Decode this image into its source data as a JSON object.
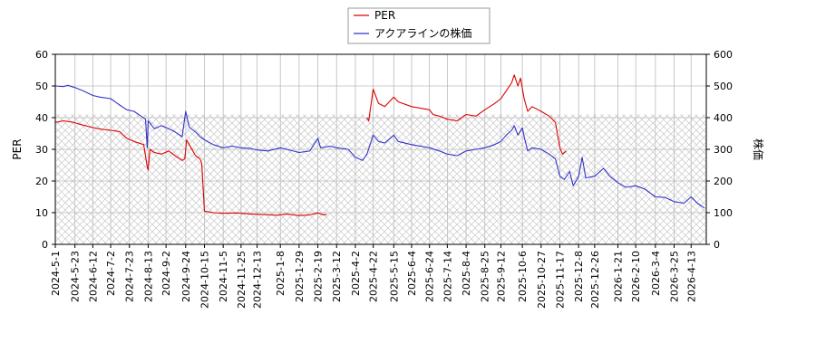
{
  "chart_data": {
    "type": "line",
    "title": "",
    "ylabel_left": "PER",
    "ylabel_right": "株価",
    "ylim_left": [
      0,
      60
    ],
    "ylim_right": [
      0,
      600
    ],
    "yticks_left": [
      "0",
      "10",
      "20",
      "30",
      "40",
      "50",
      "60"
    ],
    "yticks_right": [
      "0",
      "100",
      "200",
      "300",
      "400",
      "500",
      "600"
    ],
    "x_range": [
      "2024-05-01",
      "2026-04-30"
    ],
    "xticks": [
      "2024-5-1",
      "2024-5-23",
      "2024-6-12",
      "2024-7-2",
      "2024-7-23",
      "2024-8-13",
      "2024-9-2",
      "2024-9-24",
      "2024-10-15",
      "2024-11-5",
      "2024-11-25",
      "2024-12-13",
      "2025-1-8",
      "2025-1-29",
      "2025-2-19",
      "2025-3-12",
      "2025-4-2",
      "2025-4-22",
      "2025-5-15",
      "2025-6-4",
      "2025-6-24",
      "2025-7-14",
      "2025-8-4",
      "2025-8-25",
      "2025-9-12",
      "2025-10-6",
      "2025-10-27",
      "2025-11-17",
      "2025-12-8",
      "2025-12-26",
      "2026-1-21",
      "2026-2-10",
      "2026-3-4",
      "2026-3-25",
      "2026-4-13"
    ],
    "shaded_band_left": [
      0,
      41
    ],
    "grid": true,
    "legend_placement": "top-center",
    "series": [
      {
        "name": "PER",
        "axis": "left",
        "color": "#dd0000",
        "segments": [
          [
            [
              "2024-05-01",
              38.5
            ],
            [
              "2024-05-10",
              39.0
            ],
            [
              "2024-05-20",
              38.6
            ],
            [
              "2024-05-30",
              37.8
            ],
            [
              "2024-06-10",
              37.0
            ],
            [
              "2024-06-20",
              36.4
            ],
            [
              "2024-07-02",
              36.0
            ],
            [
              "2024-07-12",
              35.6
            ],
            [
              "2024-07-20",
              33.5
            ],
            [
              "2024-07-28",
              32.5
            ],
            [
              "2024-08-08",
              31.5
            ],
            [
              "2024-08-12",
              24.5
            ],
            [
              "2024-08-13",
              23.5
            ],
            [
              "2024-08-15",
              30.0
            ],
            [
              "2024-08-20",
              29.0
            ],
            [
              "2024-08-28",
              28.5
            ],
            [
              "2024-09-05",
              29.5
            ],
            [
              "2024-09-12",
              28.0
            ],
            [
              "2024-09-20",
              26.5
            ],
            [
              "2024-09-23",
              27.0
            ],
            [
              "2024-09-25",
              33.0
            ],
            [
              "2024-09-30",
              30.5
            ],
            [
              "2024-10-05",
              28.0
            ],
            [
              "2024-10-10",
              27.0
            ],
            [
              "2024-10-12",
              25.5
            ],
            [
              "2024-10-15",
              10.5
            ],
            [
              "2024-10-25",
              10.0
            ],
            [
              "2024-11-05",
              9.8
            ],
            [
              "2024-11-20",
              9.9
            ],
            [
              "2024-12-05",
              9.6
            ],
            [
              "2024-12-20",
              9.4
            ],
            [
              "2025-01-05",
              9.2
            ],
            [
              "2025-01-15",
              9.6
            ],
            [
              "2025-01-29",
              9.1
            ],
            [
              "2025-02-10",
              9.3
            ],
            [
              "2025-02-19",
              9.9
            ],
            [
              "2025-02-25",
              9.3
            ],
            [
              "2025-03-01",
              9.5
            ]
          ],
          [
            [
              "2025-04-15",
              40.0
            ],
            [
              "2025-04-17",
              39.0
            ],
            [
              "2025-04-22",
              49.0
            ],
            [
              "2025-04-28",
              44.5
            ],
            [
              "2025-05-05",
              43.5
            ],
            [
              "2025-05-15",
              46.5
            ],
            [
              "2025-05-20",
              45.0
            ],
            [
              "2025-06-04",
              43.5
            ],
            [
              "2025-06-24",
              42.5
            ],
            [
              "2025-06-28",
              41.0
            ],
            [
              "2025-07-05",
              40.5
            ],
            [
              "2025-07-14",
              39.5
            ],
            [
              "2025-07-25",
              39.0
            ],
            [
              "2025-08-04",
              41.0
            ],
            [
              "2025-08-15",
              40.5
            ],
            [
              "2025-08-25",
              42.5
            ],
            [
              "2025-09-05",
              44.5
            ],
            [
              "2025-09-12",
              46.0
            ],
            [
              "2025-09-18",
              48.5
            ],
            [
              "2025-09-24",
              51.0
            ],
            [
              "2025-09-27",
              53.5
            ],
            [
              "2025-10-01",
              50.0
            ],
            [
              "2025-10-04",
              52.5
            ],
            [
              "2025-10-08",
              46.0
            ],
            [
              "2025-10-12",
              42.0
            ],
            [
              "2025-10-17",
              43.5
            ],
            [
              "2025-10-27",
              42.0
            ],
            [
              "2025-11-05",
              40.5
            ],
            [
              "2025-11-12",
              38.5
            ],
            [
              "2025-11-17",
              30.5
            ],
            [
              "2025-11-20",
              28.5
            ],
            [
              "2025-11-24",
              29.5
            ]
          ]
        ]
      },
      {
        "name": "アクアラインの株価",
        "axis": "right",
        "color": "#3333cc",
        "segments": [
          [
            [
              "2024-05-01",
              500
            ],
            [
              "2024-05-10",
              498
            ],
            [
              "2024-05-15",
              502
            ],
            [
              "2024-05-23",
              495
            ],
            [
              "2024-06-01",
              485
            ],
            [
              "2024-06-12",
              470
            ],
            [
              "2024-06-20",
              465
            ],
            [
              "2024-07-02",
              460
            ],
            [
              "2024-07-12",
              440
            ],
            [
              "2024-07-20",
              425
            ],
            [
              "2024-07-28",
              420
            ],
            [
              "2024-08-05",
              405
            ],
            [
              "2024-08-10",
              395
            ],
            [
              "2024-08-12",
              305
            ],
            [
              "2024-08-13",
              390
            ],
            [
              "2024-08-20",
              365
            ],
            [
              "2024-08-28",
              375
            ],
            [
              "2024-09-05",
              365
            ],
            [
              "2024-09-12",
              355
            ],
            [
              "2024-09-20",
              340
            ],
            [
              "2024-09-24",
              420
            ],
            [
              "2024-09-28",
              370
            ],
            [
              "2024-10-05",
              355
            ],
            [
              "2024-10-10",
              340
            ],
            [
              "2024-10-15",
              330
            ],
            [
              "2024-10-25",
              315
            ],
            [
              "2024-11-05",
              305
            ],
            [
              "2024-11-15",
              310
            ],
            [
              "2024-11-25",
              305
            ],
            [
              "2024-12-05",
              303
            ],
            [
              "2024-12-13",
              298
            ],
            [
              "2024-12-25",
              295
            ],
            [
              "2025-01-08",
              305
            ],
            [
              "2025-01-15",
              300
            ],
            [
              "2025-01-29",
              290
            ],
            [
              "2025-02-10",
              295
            ],
            [
              "2025-02-19",
              335
            ],
            [
              "2025-02-22",
              305
            ],
            [
              "2025-03-05",
              310
            ],
            [
              "2025-03-12",
              305
            ],
            [
              "2025-03-25",
              300
            ],
            [
              "2025-04-02",
              275
            ],
            [
              "2025-04-10",
              265
            ],
            [
              "2025-04-15",
              285
            ],
            [
              "2025-04-22",
              345
            ],
            [
              "2025-04-28",
              325
            ],
            [
              "2025-05-05",
              320
            ],
            [
              "2025-05-15",
              345
            ],
            [
              "2025-05-20",
              325
            ],
            [
              "2025-06-04",
              315
            ],
            [
              "2025-06-24",
              305
            ],
            [
              "2025-07-05",
              295
            ],
            [
              "2025-07-14",
              285
            ],
            [
              "2025-07-25",
              280
            ],
            [
              "2025-08-04",
              295
            ],
            [
              "2025-08-15",
              300
            ],
            [
              "2025-08-25",
              305
            ],
            [
              "2025-09-05",
              315
            ],
            [
              "2025-09-12",
              325
            ],
            [
              "2025-09-18",
              345
            ],
            [
              "2025-09-24",
              360
            ],
            [
              "2025-09-27",
              375
            ],
            [
              "2025-10-01",
              345
            ],
            [
              "2025-10-06",
              368
            ],
            [
              "2025-10-08",
              340
            ],
            [
              "2025-10-12",
              295
            ],
            [
              "2025-10-17",
              305
            ],
            [
              "2025-10-27",
              300
            ],
            [
              "2025-11-05",
              285
            ],
            [
              "2025-11-12",
              270
            ],
            [
              "2025-11-17",
              215
            ],
            [
              "2025-11-22",
              205
            ],
            [
              "2025-11-28",
              230
            ],
            [
              "2025-12-02",
              185
            ],
            [
              "2025-12-08",
              215
            ],
            [
              "2025-12-12",
              275
            ],
            [
              "2025-12-16",
              210
            ],
            [
              "2025-12-26",
              215
            ],
            [
              "2026-01-05",
              240
            ],
            [
              "2026-01-12",
              215
            ],
            [
              "2026-01-21",
              195
            ],
            [
              "2026-01-30",
              180
            ],
            [
              "2026-02-10",
              185
            ],
            [
              "2026-02-20",
              175
            ],
            [
              "2026-03-04",
              150
            ],
            [
              "2026-03-15",
              148
            ],
            [
              "2026-03-25",
              135
            ],
            [
              "2026-04-05",
              130
            ],
            [
              "2026-04-13",
              150
            ],
            [
              "2026-04-20",
              130
            ],
            [
              "2026-04-28",
              115
            ]
          ]
        ]
      }
    ]
  }
}
